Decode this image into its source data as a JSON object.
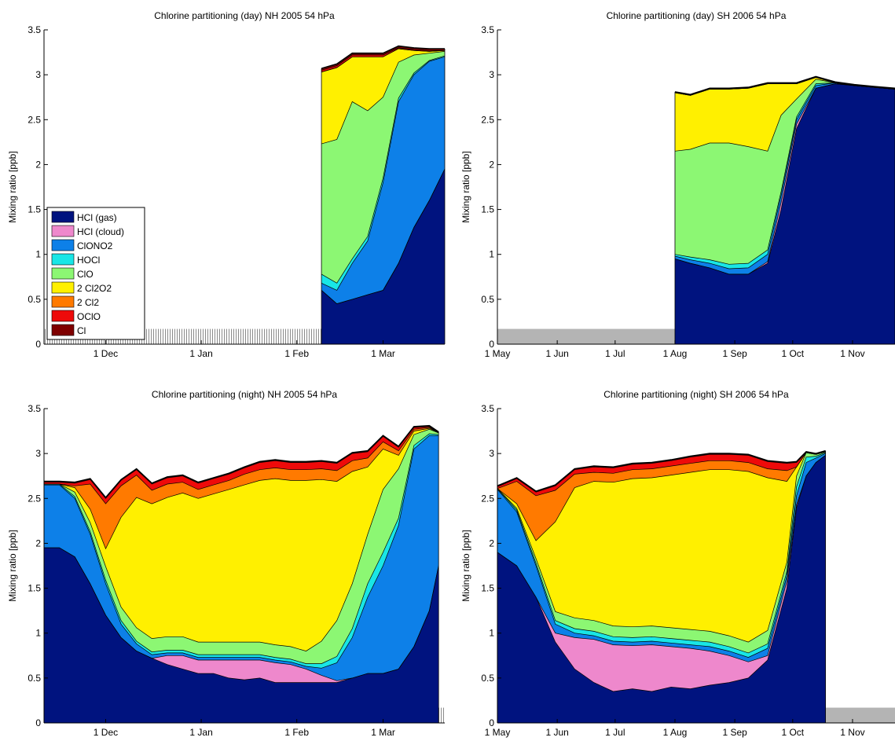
{
  "colors": {
    "HCl (gas)": "#00137f",
    "HCl (cloud)": "#ee88cc",
    "ClONO2": "#0d80e8",
    "HOCl": "#19e6e6",
    "ClO": "#8cf773",
    "2 Cl2O2": "#fff000",
    "2 Cl2": "#ff7a00",
    "OClO": "#ee0a0a",
    "Cl": "#7f0000"
  },
  "legend_order": [
    "HCl (gas)",
    "HCl (cloud)",
    "ClONO2",
    "HOCl",
    "ClO",
    "2 Cl2O2",
    "2 Cl2",
    "OClO",
    "Cl"
  ],
  "chart_data": [
    {
      "type": "area",
      "title": "Chlorine partitioning (day) NH 2005 54 hPa",
      "ylabel": "Mixing ratio [ppb]",
      "xlabel": "",
      "x_unit": "days",
      "xlim": [
        0,
        130
      ],
      "ylim": [
        0,
        3.5
      ],
      "yticks": [
        0,
        0.5,
        1,
        1.5,
        2,
        2.5,
        3,
        3.5
      ],
      "xticks": [
        {
          "x": 20,
          "label": "1 Dec"
        },
        {
          "x": 51,
          "label": "1 Jan"
        },
        {
          "x": 82,
          "label": "1 Feb"
        },
        {
          "x": 110,
          "label": "1 Mar"
        }
      ],
      "legend": true,
      "legend_loc": "lower-left",
      "gap_bar": {
        "x0": 0,
        "x1": 90,
        "height": 0.17,
        "hatched": true
      },
      "x": [
        90,
        95,
        100,
        105,
        110,
        115,
        120,
        125,
        130
      ],
      "series": [
        {
          "name": "HCl (gas)",
          "values": [
            0.6,
            0.45,
            0.5,
            0.55,
            0.6,
            0.9,
            1.3,
            1.6,
            1.95
          ]
        },
        {
          "name": "HCl (cloud)",
          "values": [
            0,
            0,
            0,
            0,
            0,
            0,
            0,
            0,
            0
          ]
        },
        {
          "name": "ClONO2",
          "values": [
            0.08,
            0.15,
            0.4,
            0.6,
            1.2,
            1.8,
            1.7,
            1.55,
            1.25
          ]
        },
        {
          "name": "HOCl",
          "values": [
            0.1,
            0.08,
            0.05,
            0.05,
            0.05,
            0.04,
            0.02,
            0.01,
            0.01
          ]
        },
        {
          "name": "ClO",
          "values": [
            1.45,
            1.6,
            1.75,
            1.4,
            0.9,
            0.4,
            0.2,
            0.08,
            0.05
          ]
        },
        {
          "name": "2 Cl2O2",
          "values": [
            0.8,
            0.8,
            0.5,
            0.6,
            0.45,
            0.15,
            0.05,
            0.02,
            0.01
          ]
        },
        {
          "name": "2 Cl2",
          "values": [
            0,
            0,
            0,
            0,
            0,
            0,
            0,
            0,
            0
          ]
        },
        {
          "name": "OClO",
          "values": [
            0.02,
            0.02,
            0.02,
            0.02,
            0.02,
            0.01,
            0.01,
            0.01,
            0
          ]
        },
        {
          "name": "Cl",
          "values": [
            0.02,
            0.02,
            0.02,
            0.02,
            0.02,
            0.02,
            0.02,
            0.02,
            0.02
          ]
        }
      ]
    },
    {
      "type": "area",
      "title": "Chlorine partitioning (day) SH 2006 54 hPa",
      "ylabel": "Mixing ratio [ppb]",
      "xlabel": "",
      "x_unit": "days",
      "xlim": [
        0,
        206
      ],
      "ylim": [
        0,
        3.5
      ],
      "yticks": [
        0,
        0.5,
        1,
        1.5,
        2,
        2.5,
        3,
        3.5
      ],
      "xticks": [
        {
          "x": 0,
          "label": "1 May"
        },
        {
          "x": 31,
          "label": "1 Jun"
        },
        {
          "x": 61,
          "label": "1 Jul"
        },
        {
          "x": 92,
          "label": "1 Aug"
        },
        {
          "x": 123,
          "label": "1 Sep"
        },
        {
          "x": 153,
          "label": "1 Oct"
        },
        {
          "x": 184,
          "label": "1 Nov"
        }
      ],
      "legend": false,
      "gap_bar": {
        "x0": 0,
        "x1": 92,
        "height": 0.17,
        "hatched": false
      },
      "x": [
        92,
        100,
        110,
        120,
        130,
        140,
        147,
        155,
        165,
        175,
        185,
        195,
        206
      ],
      "series": [
        {
          "name": "HCl (gas)",
          "values": [
            0.95,
            0.9,
            0.85,
            0.78,
            0.78,
            0.9,
            1.5,
            2.4,
            2.85,
            2.9,
            2.88,
            2.86,
            2.84
          ]
        },
        {
          "name": "HCl (cloud)",
          "values": [
            0,
            0,
            0,
            0,
            0,
            0.02,
            0.08,
            0.05,
            0,
            0,
            0,
            0,
            0
          ]
        },
        {
          "name": "ClONO2",
          "values": [
            0.03,
            0.04,
            0.05,
            0.06,
            0.07,
            0.08,
            0.08,
            0.05,
            0.03,
            0.01,
            0,
            0,
            0
          ]
        },
        {
          "name": "HOCl",
          "values": [
            0.02,
            0.03,
            0.04,
            0.05,
            0.05,
            0.05,
            0.04,
            0.03,
            0.02,
            0,
            0,
            0,
            0
          ]
        },
        {
          "name": "ClO",
          "values": [
            1.15,
            1.2,
            1.3,
            1.35,
            1.3,
            1.1,
            0.85,
            0.2,
            0.05,
            0,
            0,
            0,
            0
          ]
        },
        {
          "name": "2 Cl2O2",
          "values": [
            0.65,
            0.6,
            0.6,
            0.6,
            0.65,
            0.75,
            0.35,
            0.17,
            0.02,
            0,
            0,
            0,
            0
          ]
        },
        {
          "name": "2 Cl2",
          "values": [
            0,
            0,
            0,
            0,
            0,
            0,
            0,
            0,
            0,
            0,
            0,
            0,
            0
          ]
        },
        {
          "name": "OClO",
          "values": [
            0,
            0,
            0,
            0,
            0,
            0,
            0,
            0,
            0,
            0,
            0,
            0,
            0
          ]
        },
        {
          "name": "Cl",
          "values": [
            0.01,
            0.01,
            0.01,
            0.01,
            0.01,
            0.01,
            0.01,
            0.01,
            0.01,
            0.01,
            0.01,
            0.01,
            0.01
          ]
        }
      ]
    },
    {
      "type": "area",
      "title": "Chlorine partitioning (night) NH 2005 54 hPa",
      "ylabel": "Mixing ratio [ppb]",
      "xlabel": "",
      "x_unit": "days",
      "xlim": [
        0,
        130
      ],
      "ylim": [
        0,
        3.5
      ],
      "yticks": [
        0,
        0.5,
        1,
        1.5,
        2,
        2.5,
        3,
        3.5
      ],
      "xticks": [
        {
          "x": 20,
          "label": "1 Dec"
        },
        {
          "x": 51,
          "label": "1 Jan"
        },
        {
          "x": 82,
          "label": "1 Feb"
        },
        {
          "x": 110,
          "label": "1 Mar"
        }
      ],
      "legend": false,
      "gap_bar": {
        "x0": 128,
        "x1": 130,
        "height": 0.17,
        "hatched": true
      },
      "x": [
        0,
        5,
        10,
        15,
        20,
        25,
        30,
        35,
        40,
        45,
        50,
        55,
        60,
        65,
        70,
        75,
        80,
        85,
        90,
        95,
        100,
        105,
        110,
        115,
        120,
        125,
        128
      ],
      "series": [
        {
          "name": "HCl (gas)",
          "values": [
            1.95,
            1.95,
            1.85,
            1.55,
            1.2,
            0.95,
            0.8,
            0.72,
            0.65,
            0.6,
            0.55,
            0.55,
            0.5,
            0.48,
            0.5,
            0.45,
            0.45,
            0.45,
            0.45,
            0.45,
            0.5,
            0.55,
            0.55,
            0.6,
            0.85,
            1.25,
            1.75
          ]
        },
        {
          "name": "HCl (cloud)",
          "values": [
            0,
            0,
            0,
            0,
            0,
            0,
            0,
            0,
            0.1,
            0.15,
            0.15,
            0.15,
            0.2,
            0.22,
            0.2,
            0.22,
            0.2,
            0.15,
            0.08,
            0.02,
            0,
            0,
            0,
            0,
            0,
            0,
            0
          ]
        },
        {
          "name": "ClONO2",
          "values": [
            0.7,
            0.7,
            0.65,
            0.55,
            0.35,
            0.15,
            0.08,
            0.04,
            0.03,
            0.03,
            0.03,
            0.03,
            0.03,
            0.03,
            0.03,
            0.03,
            0.03,
            0.03,
            0.08,
            0.2,
            0.45,
            0.85,
            1.2,
            1.6,
            2.2,
            1.95,
            1.45
          ]
        },
        {
          "name": "HOCl",
          "values": [
            0.01,
            0.01,
            0.02,
            0.03,
            0.04,
            0.04,
            0.03,
            0.03,
            0.03,
            0.03,
            0.03,
            0.03,
            0.03,
            0.03,
            0.03,
            0.03,
            0.03,
            0.03,
            0.05,
            0.07,
            0.1,
            0.15,
            0.15,
            0.08,
            0.04,
            0.02,
            0.01
          ]
        },
        {
          "name": "ClO",
          "values": [
            0,
            0,
            0.05,
            0.1,
            0.15,
            0.15,
            0.15,
            0.15,
            0.15,
            0.15,
            0.14,
            0.14,
            0.14,
            0.14,
            0.14,
            0.14,
            0.14,
            0.14,
            0.25,
            0.4,
            0.5,
            0.55,
            0.7,
            0.55,
            0.12,
            0.05,
            0.02
          ]
        },
        {
          "name": "2 Cl2O2",
          "values": [
            0,
            0,
            0.05,
            0.15,
            0.2,
            1.0,
            1.45,
            1.5,
            1.55,
            1.6,
            1.6,
            1.65,
            1.7,
            1.75,
            1.8,
            1.85,
            1.85,
            1.9,
            1.8,
            1.55,
            1.25,
            0.75,
            0.45,
            0.15,
            0.04,
            0.01,
            0
          ]
        },
        {
          "name": "2 Cl2",
          "values": [
            0,
            0,
            0.02,
            0.28,
            0.5,
            0.35,
            0.25,
            0.15,
            0.15,
            0.12,
            0.1,
            0.1,
            0.1,
            0.12,
            0.12,
            0.12,
            0.12,
            0.12,
            0.12,
            0.12,
            0.12,
            0.1,
            0.08,
            0.05,
            0.02,
            0.01,
            0
          ]
        },
        {
          "name": "OClO",
          "values": [
            0.02,
            0.02,
            0.03,
            0.05,
            0.06,
            0.06,
            0.06,
            0.07,
            0.07,
            0.07,
            0.07,
            0.07,
            0.07,
            0.07,
            0.08,
            0.08,
            0.08,
            0.08,
            0.08,
            0.08,
            0.08,
            0.07,
            0.06,
            0.04,
            0.02,
            0.01,
            0
          ]
        },
        {
          "name": "Cl",
          "values": [
            0.01,
            0.01,
            0.01,
            0.01,
            0.01,
            0.01,
            0.01,
            0.01,
            0.01,
            0.01,
            0.01,
            0.01,
            0.01,
            0.01,
            0.01,
            0.01,
            0.01,
            0.01,
            0.01,
            0.01,
            0.01,
            0.01,
            0.01,
            0.01,
            0.01,
            0.01,
            0.01
          ]
        }
      ]
    },
    {
      "type": "area",
      "title": "Chlorine partitioning (night) SH 2006 54 hPa",
      "ylabel": "Mixing ratio [ppb]",
      "xlabel": "",
      "x_unit": "days",
      "xlim": [
        0,
        206
      ],
      "ylim": [
        0,
        3.5
      ],
      "yticks": [
        0,
        0.5,
        1,
        1.5,
        2,
        2.5,
        3,
        3.5
      ],
      "xticks": [
        {
          "x": 0,
          "label": "1 May"
        },
        {
          "x": 31,
          "label": "1 Jun"
        },
        {
          "x": 61,
          "label": "1 Jul"
        },
        {
          "x": 92,
          "label": "1 Aug"
        },
        {
          "x": 123,
          "label": "1 Sep"
        },
        {
          "x": 153,
          "label": "1 Oct"
        },
        {
          "x": 184,
          "label": "1 Nov"
        }
      ],
      "legend": false,
      "gap_bar": {
        "x0": 170,
        "x1": 206,
        "height": 0.17,
        "hatched": false
      },
      "x": [
        0,
        10,
        20,
        30,
        40,
        50,
        60,
        70,
        80,
        90,
        100,
        110,
        120,
        130,
        140,
        150,
        155,
        160,
        165,
        170
      ],
      "series": [
        {
          "name": "HCl (gas)",
          "values": [
            1.9,
            1.75,
            1.4,
            0.9,
            0.6,
            0.45,
            0.35,
            0.38,
            0.35,
            0.4,
            0.38,
            0.42,
            0.45,
            0.5,
            0.7,
            1.5,
            2.4,
            2.75,
            2.9,
            2.98
          ]
        },
        {
          "name": "HCl (cloud)",
          "values": [
            0,
            0,
            0,
            0.1,
            0.35,
            0.48,
            0.52,
            0.48,
            0.52,
            0.45,
            0.45,
            0.38,
            0.3,
            0.18,
            0.05,
            0.08,
            0.03,
            0,
            0,
            0
          ]
        },
        {
          "name": "ClONO2",
          "values": [
            0.7,
            0.6,
            0.35,
            0.1,
            0.05,
            0.04,
            0.04,
            0.04,
            0.04,
            0.04,
            0.04,
            0.05,
            0.05,
            0.05,
            0.08,
            0.06,
            0.1,
            0.15,
            0.05,
            0.02
          ]
        },
        {
          "name": "HOCl",
          "values": [
            0.01,
            0.02,
            0.03,
            0.04,
            0.05,
            0.05,
            0.05,
            0.05,
            0.05,
            0.05,
            0.05,
            0.05,
            0.05,
            0.05,
            0.05,
            0.05,
            0.1,
            0.06,
            0.02,
            0.01
          ]
        },
        {
          "name": "ClO",
          "values": [
            0,
            0.02,
            0.05,
            0.1,
            0.12,
            0.12,
            0.12,
            0.12,
            0.12,
            0.12,
            0.12,
            0.12,
            0.12,
            0.12,
            0.15,
            0.1,
            0.12,
            0.05,
            0.02,
            0.01
          ]
        },
        {
          "name": "2 Cl2O2",
          "values": [
            0,
            0.05,
            0.2,
            1.0,
            1.45,
            1.55,
            1.6,
            1.65,
            1.65,
            1.7,
            1.75,
            1.8,
            1.85,
            1.9,
            1.7,
            0.9,
            0.1,
            0,
            0,
            0
          ]
        },
        {
          "name": "2 Cl2",
          "values": [
            0,
            0.25,
            0.5,
            0.35,
            0.15,
            0.1,
            0.1,
            0.1,
            0.1,
            0.1,
            0.1,
            0.1,
            0.1,
            0.1,
            0.1,
            0.12,
            0,
            0,
            0,
            0
          ]
        },
        {
          "name": "OClO",
          "values": [
            0.02,
            0.03,
            0.04,
            0.05,
            0.05,
            0.06,
            0.06,
            0.06,
            0.06,
            0.06,
            0.07,
            0.07,
            0.07,
            0.08,
            0.08,
            0.08,
            0.05,
            0,
            0,
            0
          ]
        },
        {
          "name": "Cl",
          "values": [
            0.01,
            0.01,
            0.01,
            0.01,
            0.01,
            0.01,
            0.01,
            0.01,
            0.01,
            0.01,
            0.01,
            0.01,
            0.01,
            0.01,
            0.01,
            0.01,
            0.01,
            0.01,
            0.01,
            0.01
          ]
        }
      ]
    }
  ]
}
